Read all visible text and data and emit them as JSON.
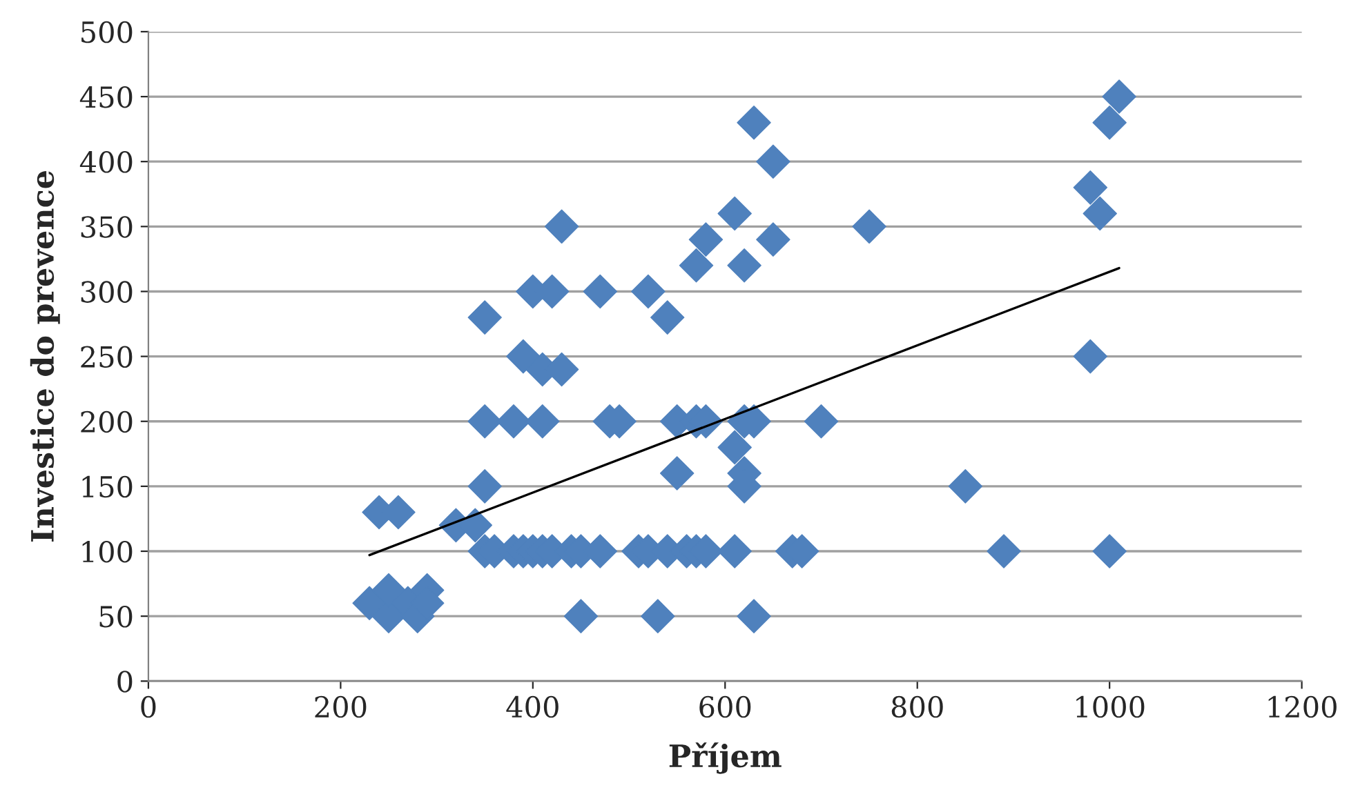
{
  "chart_data": {
    "type": "scatter",
    "xlabel": "Příjem",
    "ylabel": "Investice do prevence",
    "xlim": [
      0,
      1200
    ],
    "xticks": [
      0,
      200,
      400,
      600,
      800,
      1000,
      1200
    ],
    "ylim": [
      0,
      500
    ],
    "yticks": [
      0,
      50,
      100,
      150,
      200,
      250,
      300,
      350,
      400,
      450,
      500
    ],
    "grid": "y",
    "legend": false,
    "marker": "diamond",
    "series": [
      {
        "color": "#4f81bd",
        "x": [
          230,
          250,
          250,
          270,
          280,
          290,
          290,
          240,
          260,
          320,
          340,
          350,
          350,
          350,
          350,
          360,
          380,
          380,
          390,
          390,
          400,
          400,
          410,
          410,
          410,
          420,
          420,
          430,
          430,
          440,
          450,
          450,
          470,
          470,
          480,
          490,
          510,
          520,
          520,
          530,
          540,
          540,
          550,
          550,
          560,
          570,
          570,
          570,
          580,
          580,
          580,
          610,
          610,
          610,
          620,
          620,
          620,
          620,
          630,
          630,
          630,
          650,
          650,
          670,
          680,
          700,
          750,
          850,
          890,
          980,
          980,
          990,
          1000,
          1000,
          1010
        ],
        "values": [
          60,
          50,
          70,
          60,
          50,
          70,
          60,
          130,
          130,
          120,
          120,
          280,
          200,
          150,
          100,
          100,
          200,
          100,
          250,
          100,
          300,
          100,
          240,
          200,
          100,
          300,
          100,
          350,
          240,
          100,
          100,
          50,
          300,
          100,
          200,
          200,
          100,
          300,
          100,
          50,
          280,
          100,
          200,
          160,
          100,
          320,
          200,
          100,
          340,
          200,
          100,
          360,
          180,
          100,
          320,
          200,
          160,
          150,
          430,
          200,
          50,
          400,
          340,
          100,
          100,
          200,
          350,
          150,
          100,
          380,
          250,
          360,
          430,
          100,
          450
        ]
      },
      {
        "type": "line",
        "color": "#000000",
        "marker": "none",
        "x": [
          230,
          1010
        ],
        "values": [
          97,
          318
        ]
      }
    ]
  }
}
